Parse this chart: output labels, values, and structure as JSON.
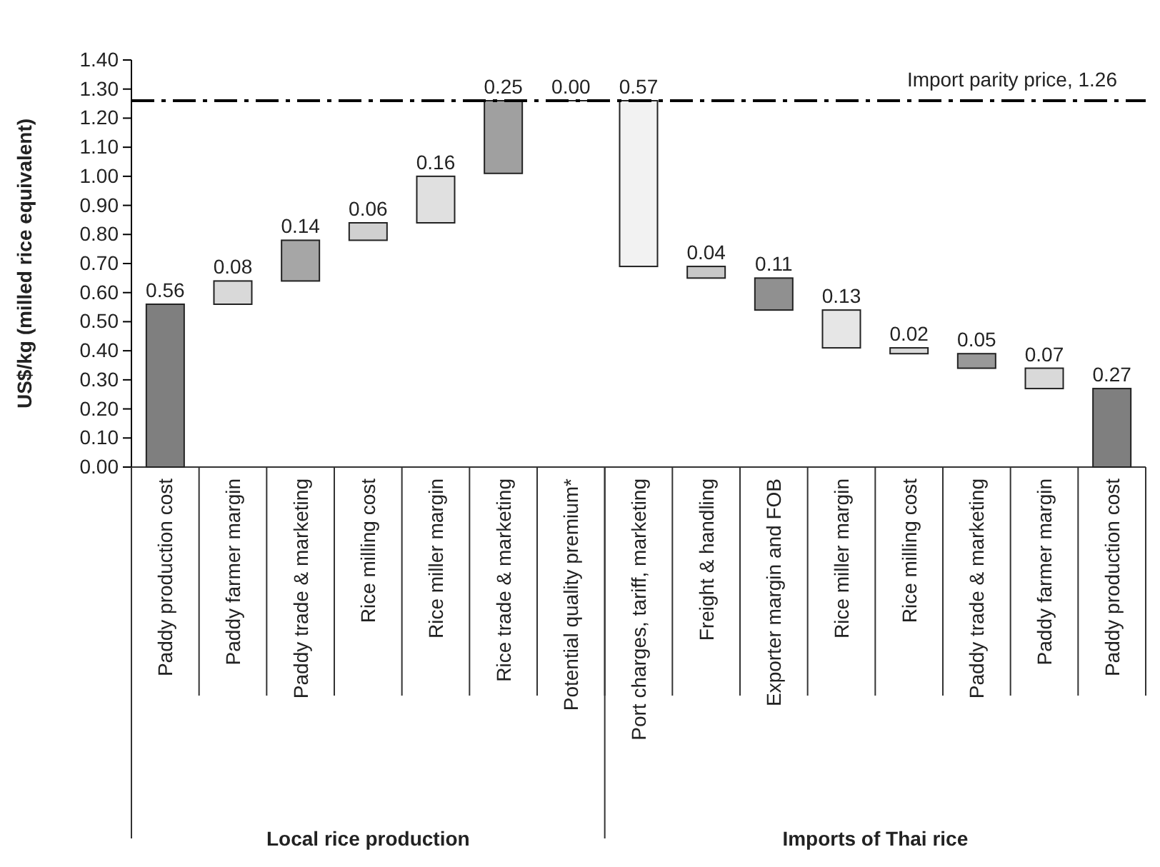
{
  "chart_data": {
    "type": "bar",
    "ylabel": "US$/kg (milled rice equivalent)",
    "categories": [
      "Paddy production cost",
      "Paddy farmer margin",
      "Paddy trade & marketing",
      "Rice milling cost",
      "Rice miller margin",
      "Rice trade & marketing",
      "Potential quality premium*",
      "Port charges, tariff, marketing",
      "Freight & handling",
      "Exporter margin and FOB",
      "Rice miller margin",
      "Rice milling cost",
      "Paddy trade & marketing",
      "Paddy farmer margin",
      "Paddy production cost"
    ],
    "values": [
      0.56,
      0.08,
      0.14,
      0.06,
      0.16,
      0.25,
      0.0,
      0.57,
      0.04,
      0.11,
      0.13,
      0.02,
      0.05,
      0.07,
      0.27
    ],
    "base": [
      0,
      0.56,
      0.64,
      0.78,
      0.84,
      1.01,
      1.26,
      0.69,
      0.65,
      0.54,
      0.41,
      0.39,
      0.34,
      0.27,
      0
    ],
    "value_labels": [
      "0.56",
      "0.08",
      "0.14",
      "0.06",
      "0.16",
      "0.25",
      "0.00",
      "0.57",
      "0.04",
      "0.11",
      "0.13",
      "0.02",
      "0.05",
      "0.07",
      "0.27"
    ],
    "colors": [
      "#7f7f7f",
      "#d9d9d9",
      "#a6a6a6",
      "#d0d0d0",
      "#e0e0e0",
      "#a0a0a0",
      "#222222",
      "#f2f2f2",
      "#c8c8c8",
      "#909090",
      "#e6e6e6",
      "#d9d9d9",
      "#999999",
      "#d9d9d9",
      "#7f7f7f"
    ],
    "ylim": [
      0,
      1.4
    ],
    "yticks": [
      {
        "value": 0,
        "label": "0.00"
      },
      {
        "value": 0.1,
        "label": "0.10"
      },
      {
        "value": 0.2,
        "label": "0.20"
      },
      {
        "value": 0.3,
        "label": "0.30"
      },
      {
        "value": 0.4,
        "label": "0.40"
      },
      {
        "value": 0.5,
        "label": "0.50"
      },
      {
        "value": 0.6,
        "label": "0.60"
      },
      {
        "value": 0.7,
        "label": "0.70"
      },
      {
        "value": 0.8,
        "label": "0.80"
      },
      {
        "value": 0.9,
        "label": "0.90"
      },
      {
        "value": 1.0,
        "label": "1.00"
      },
      {
        "value": 1.1,
        "label": "1.10"
      },
      {
        "value": 1.2,
        "label": "1.20"
      },
      {
        "value": 1.3,
        "label": "1.30"
      },
      {
        "value": 1.4,
        "label": "1.40"
      }
    ],
    "ref_lines": [
      {
        "axis": "y",
        "value": 1.26,
        "label": "Import parity price, 1.26",
        "color": "#000000",
        "line_style": "dashed"
      }
    ],
    "annotations": [
      "Local rice production",
      "Imports of Thai rice"
    ]
  }
}
